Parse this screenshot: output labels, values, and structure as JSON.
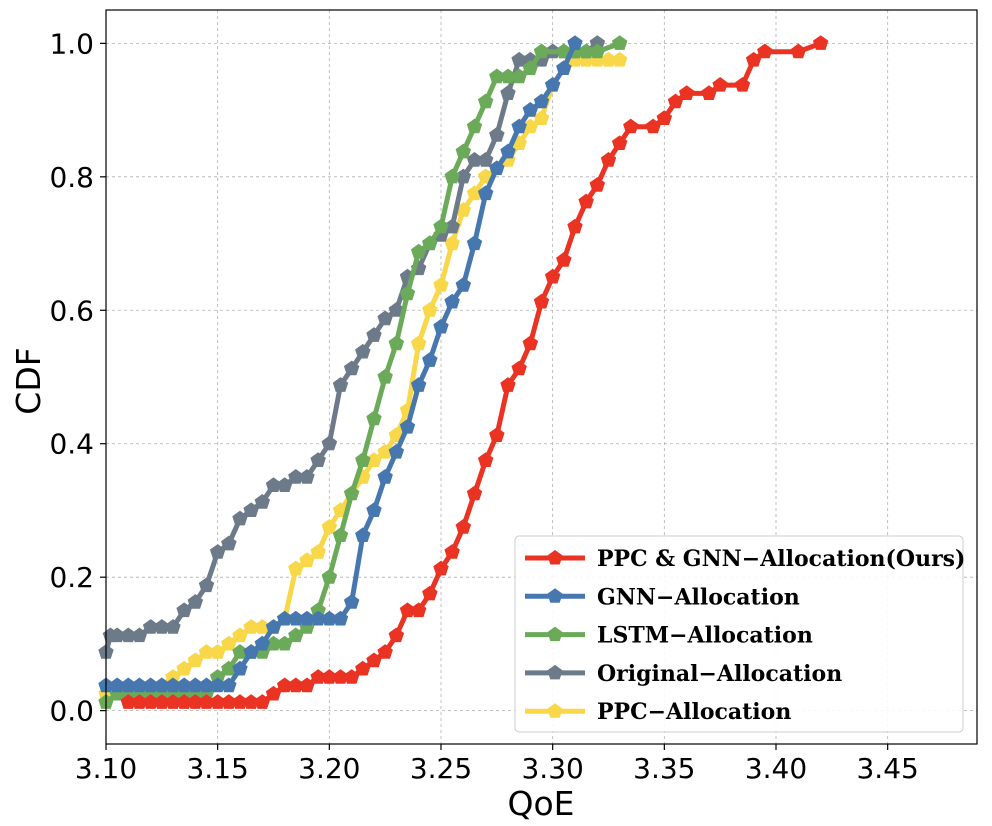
{
  "chart_data": {
    "type": "line",
    "xlabel": "QoE",
    "ylabel": "CDF",
    "xlim": [
      3.1,
      3.49
    ],
    "ylim": [
      -0.05,
      1.05
    ],
    "x_ticks": [
      "3.10",
      "3.15",
      "3.20",
      "3.25",
      "3.30",
      "3.35",
      "3.40",
      "3.45"
    ],
    "y_ticks": [
      "0.0",
      "0.2",
      "0.4",
      "0.6",
      "0.8",
      "1.0"
    ],
    "grid": true,
    "legend_position": "lower-right",
    "series": [
      {
        "name": "PPC & GNN−Allocation(Ours)",
        "color": "#ea3323",
        "points": [
          [
            3.11,
            0.0125
          ],
          [
            3.115,
            0.0125
          ],
          [
            3.12,
            0.0125
          ],
          [
            3.125,
            0.0125
          ],
          [
            3.13,
            0.0125
          ],
          [
            3.135,
            0.0125
          ],
          [
            3.14,
            0.0125
          ],
          [
            3.145,
            0.0125
          ],
          [
            3.15,
            0.0125
          ],
          [
            3.155,
            0.0125
          ],
          [
            3.16,
            0.0125
          ],
          [
            3.165,
            0.0125
          ],
          [
            3.17,
            0.0125
          ],
          [
            3.175,
            0.025
          ],
          [
            3.18,
            0.0375
          ],
          [
            3.185,
            0.0375
          ],
          [
            3.19,
            0.0375
          ],
          [
            3.195,
            0.05
          ],
          [
            3.2,
            0.05
          ],
          [
            3.205,
            0.05
          ],
          [
            3.21,
            0.05
          ],
          [
            3.215,
            0.0625
          ],
          [
            3.22,
            0.075
          ],
          [
            3.225,
            0.0875
          ],
          [
            3.23,
            0.1125
          ],
          [
            3.235,
            0.15
          ],
          [
            3.24,
            0.15
          ],
          [
            3.245,
            0.175
          ],
          [
            3.25,
            0.2125
          ],
          [
            3.255,
            0.2375
          ],
          [
            3.26,
            0.275
          ],
          [
            3.265,
            0.325
          ],
          [
            3.27,
            0.375
          ],
          [
            3.275,
            0.4125
          ],
          [
            3.28,
            0.4875
          ],
          [
            3.285,
            0.5125
          ],
          [
            3.29,
            0.55
          ],
          [
            3.295,
            0.6125
          ],
          [
            3.3,
            0.65
          ],
          [
            3.305,
            0.675
          ],
          [
            3.31,
            0.725
          ],
          [
            3.315,
            0.7625
          ],
          [
            3.32,
            0.7875
          ],
          [
            3.325,
            0.825
          ],
          [
            3.33,
            0.85
          ],
          [
            3.335,
            0.875
          ],
          [
            3.345,
            0.875
          ],
          [
            3.35,
            0.8875
          ],
          [
            3.355,
            0.9125
          ],
          [
            3.36,
            0.925
          ],
          [
            3.37,
            0.925
          ],
          [
            3.375,
            0.9375
          ],
          [
            3.385,
            0.9375
          ],
          [
            3.39,
            0.975
          ],
          [
            3.395,
            0.9875
          ],
          [
            3.41,
            0.9875
          ],
          [
            3.42,
            1.0
          ]
        ]
      },
      {
        "name": "GNN−Allocation",
        "color": "#4677ae",
        "points": [
          [
            3.1,
            0.0375
          ],
          [
            3.105,
            0.0375
          ],
          [
            3.11,
            0.0375
          ],
          [
            3.115,
            0.0375
          ],
          [
            3.12,
            0.0375
          ],
          [
            3.125,
            0.0375
          ],
          [
            3.13,
            0.0375
          ],
          [
            3.135,
            0.0375
          ],
          [
            3.14,
            0.0375
          ],
          [
            3.145,
            0.0375
          ],
          [
            3.15,
            0.0375
          ],
          [
            3.155,
            0.0375
          ],
          [
            3.16,
            0.0625
          ],
          [
            3.165,
            0.0875
          ],
          [
            3.17,
            0.1
          ],
          [
            3.175,
            0.125
          ],
          [
            3.18,
            0.1375
          ],
          [
            3.185,
            0.1375
          ],
          [
            3.19,
            0.1375
          ],
          [
            3.195,
            0.1375
          ],
          [
            3.2,
            0.1375
          ],
          [
            3.205,
            0.1375
          ],
          [
            3.21,
            0.1625
          ],
          [
            3.215,
            0.2625
          ],
          [
            3.22,
            0.3
          ],
          [
            3.225,
            0.35
          ],
          [
            3.23,
            0.3875
          ],
          [
            3.235,
            0.425
          ],
          [
            3.24,
            0.4875
          ],
          [
            3.245,
            0.525
          ],
          [
            3.25,
            0.575
          ],
          [
            3.255,
            0.6125
          ],
          [
            3.26,
            0.6375
          ],
          [
            3.265,
            0.7
          ],
          [
            3.27,
            0.775
          ],
          [
            3.275,
            0.8125
          ],
          [
            3.28,
            0.8375
          ],
          [
            3.285,
            0.875
          ],
          [
            3.29,
            0.9
          ],
          [
            3.295,
            0.9125
          ],
          [
            3.3,
            0.9375
          ],
          [
            3.305,
            0.9625
          ],
          [
            3.31,
            1.0
          ]
        ]
      },
      {
        "name": "LSTM−Allocation",
        "color": "#6aaa58",
        "points": [
          [
            3.1,
            0.0125
          ],
          [
            3.105,
            0.025
          ],
          [
            3.11,
            0.025
          ],
          [
            3.115,
            0.025
          ],
          [
            3.12,
            0.025
          ],
          [
            3.125,
            0.025
          ],
          [
            3.13,
            0.025
          ],
          [
            3.135,
            0.025
          ],
          [
            3.14,
            0.025
          ],
          [
            3.145,
            0.025
          ],
          [
            3.15,
            0.05
          ],
          [
            3.155,
            0.0625
          ],
          [
            3.16,
            0.0875
          ],
          [
            3.165,
            0.0875
          ],
          [
            3.17,
            0.0875
          ],
          [
            3.175,
            0.1
          ],
          [
            3.18,
            0.1
          ],
          [
            3.185,
            0.1125
          ],
          [
            3.19,
            0.125
          ],
          [
            3.195,
            0.15
          ],
          [
            3.2,
            0.2
          ],
          [
            3.205,
            0.2625
          ],
          [
            3.21,
            0.325
          ],
          [
            3.215,
            0.375
          ],
          [
            3.22,
            0.4375
          ],
          [
            3.225,
            0.5
          ],
          [
            3.23,
            0.55
          ],
          [
            3.235,
            0.625
          ],
          [
            3.24,
            0.6875
          ],
          [
            3.245,
            0.7
          ],
          [
            3.25,
            0.725
          ],
          [
            3.255,
            0.8
          ],
          [
            3.26,
            0.8375
          ],
          [
            3.265,
            0.875
          ],
          [
            3.27,
            0.9125
          ],
          [
            3.275,
            0.95
          ],
          [
            3.28,
            0.95
          ],
          [
            3.285,
            0.95
          ],
          [
            3.29,
            0.9625
          ],
          [
            3.295,
            0.9875
          ],
          [
            3.305,
            0.9875
          ],
          [
            3.31,
            0.9875
          ],
          [
            3.315,
            0.9875
          ],
          [
            3.32,
            0.9875
          ],
          [
            3.33,
            1.0
          ]
        ]
      },
      {
        "name": "Original−Allocation",
        "color": "#6c7a89",
        "points": [
          [
            3.1,
            0.0875
          ],
          [
            3.102,
            0.1125
          ],
          [
            3.105,
            0.1125
          ],
          [
            3.11,
            0.1125
          ],
          [
            3.115,
            0.1125
          ],
          [
            3.12,
            0.125
          ],
          [
            3.125,
            0.125
          ],
          [
            3.13,
            0.125
          ],
          [
            3.135,
            0.15
          ],
          [
            3.14,
            0.1625
          ],
          [
            3.145,
            0.1875
          ],
          [
            3.15,
            0.2375
          ],
          [
            3.155,
            0.25
          ],
          [
            3.16,
            0.2875
          ],
          [
            3.165,
            0.3
          ],
          [
            3.17,
            0.3125
          ],
          [
            3.175,
            0.3375
          ],
          [
            3.18,
            0.3375
          ],
          [
            3.185,
            0.35
          ],
          [
            3.19,
            0.35
          ],
          [
            3.195,
            0.375
          ],
          [
            3.2,
            0.4
          ],
          [
            3.205,
            0.4875
          ],
          [
            3.21,
            0.5125
          ],
          [
            3.215,
            0.5375
          ],
          [
            3.22,
            0.5625
          ],
          [
            3.225,
            0.5875
          ],
          [
            3.23,
            0.6
          ],
          [
            3.235,
            0.65
          ],
          [
            3.24,
            0.6625
          ],
          [
            3.245,
            0.7
          ],
          [
            3.25,
            0.7125
          ],
          [
            3.255,
            0.725
          ],
          [
            3.26,
            0.8
          ],
          [
            3.265,
            0.825
          ],
          [
            3.27,
            0.825
          ],
          [
            3.275,
            0.8625
          ],
          [
            3.28,
            0.925
          ],
          [
            3.285,
            0.975
          ],
          [
            3.29,
            0.975
          ],
          [
            3.295,
            0.975
          ],
          [
            3.3,
            0.9875
          ],
          [
            3.305,
            0.9875
          ],
          [
            3.31,
            0.9875
          ],
          [
            3.315,
            0.9875
          ],
          [
            3.32,
            1.0
          ]
        ]
      },
      {
        "name": "PPC−Allocation",
        "color": "#f8d749",
        "points": [
          [
            3.1,
            0.025
          ],
          [
            3.105,
            0.025
          ],
          [
            3.11,
            0.025
          ],
          [
            3.115,
            0.025
          ],
          [
            3.12,
            0.025
          ],
          [
            3.125,
            0.0375
          ],
          [
            3.13,
            0.05
          ],
          [
            3.135,
            0.0625
          ],
          [
            3.14,
            0.075
          ],
          [
            3.145,
            0.0875
          ],
          [
            3.15,
            0.0875
          ],
          [
            3.155,
            0.1
          ],
          [
            3.16,
            0.1125
          ],
          [
            3.165,
            0.125
          ],
          [
            3.17,
            0.125
          ],
          [
            3.175,
            0.125
          ],
          [
            3.18,
            0.1375
          ],
          [
            3.185,
            0.2125
          ],
          [
            3.19,
            0.225
          ],
          [
            3.195,
            0.2375
          ],
          [
            3.2,
            0.275
          ],
          [
            3.205,
            0.3
          ],
          [
            3.21,
            0.325
          ],
          [
            3.215,
            0.35
          ],
          [
            3.22,
            0.375
          ],
          [
            3.225,
            0.3875
          ],
          [
            3.23,
            0.4125
          ],
          [
            3.235,
            0.45
          ],
          [
            3.24,
            0.55
          ],
          [
            3.245,
            0.6
          ],
          [
            3.25,
            0.6375
          ],
          [
            3.255,
            0.7
          ],
          [
            3.26,
            0.75
          ],
          [
            3.265,
            0.775
          ],
          [
            3.27,
            0.8
          ],
          [
            3.275,
            0.8125
          ],
          [
            3.28,
            0.825
          ],
          [
            3.285,
            0.85
          ],
          [
            3.29,
            0.875
          ],
          [
            3.295,
            0.8875
          ],
          [
            3.3,
            0.9375
          ],
          [
            3.305,
            0.9625
          ],
          [
            3.31,
            0.975
          ],
          [
            3.315,
            0.975
          ],
          [
            3.32,
            0.975
          ],
          [
            3.325,
            0.975
          ],
          [
            3.33,
            0.975
          ]
        ]
      }
    ]
  }
}
